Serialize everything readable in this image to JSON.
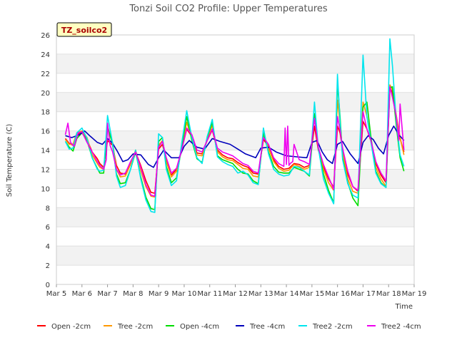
{
  "chart_data": {
    "type": "line",
    "title": "Tonzi Soil CO2 Profile: Upper Temperatures",
    "xlabel": "Time",
    "ylabel": "Soil Temperature (C)",
    "site_label": "TZ_soilco2",
    "xlim": [
      5,
      19
    ],
    "ylim": [
      0,
      26
    ],
    "x_ticks": [
      5,
      6,
      7,
      8,
      9,
      10,
      11,
      12,
      13,
      14,
      15,
      16,
      17,
      18,
      19
    ],
    "x_tick_labels": [
      "Mar 5",
      "Mar 6",
      "Mar 7",
      "Mar 8",
      "Mar 9",
      "Mar 10",
      "Mar 11",
      "Mar 12",
      "Mar 13",
      "Mar 14",
      "Mar 15",
      "Mar 16",
      "Mar 17",
      "Mar 18",
      "Mar 19"
    ],
    "y_ticks": [
      0,
      2,
      4,
      6,
      8,
      10,
      12,
      14,
      16,
      18,
      20,
      22,
      24,
      26
    ],
    "grid": true,
    "legend_position": "bottom",
    "series": [
      {
        "name": "Open -2cm",
        "color": "#ff0000",
        "x": [
          5.35,
          5.5,
          5.65,
          5.8,
          6.0,
          6.2,
          6.4,
          6.6,
          6.7,
          6.85,
          7.0,
          7.2,
          7.35,
          7.5,
          7.7,
          7.9,
          8.1,
          8.3,
          8.5,
          8.7,
          8.85,
          9.0,
          9.15,
          9.3,
          9.5,
          9.7,
          9.9,
          10.1,
          10.3,
          10.5,
          10.7,
          10.9,
          11.1,
          11.3,
          11.5,
          11.7,
          11.9,
          12.1,
          12.3,
          12.5,
          12.7,
          12.9,
          13.1,
          13.3,
          13.5,
          13.7,
          13.9,
          14.1,
          14.3,
          14.5,
          14.7,
          14.9,
          15.1,
          15.25,
          15.45,
          15.65,
          15.85,
          16.0,
          16.1,
          16.2,
          16.4,
          16.6,
          16.8,
          17.0,
          17.15,
          17.3,
          17.5,
          17.7,
          17.9,
          18.05,
          18.15,
          18.3,
          18.45,
          18.6
        ],
        "y": [
          15.2,
          14.7,
          14.5,
          15.6,
          15.9,
          15.1,
          13.8,
          13.1,
          12.6,
          12.2,
          15.0,
          14.5,
          12.4,
          11.6,
          11.5,
          12.7,
          13.8,
          12.4,
          10.8,
          9.6,
          9.5,
          14.1,
          14.6,
          13.0,
          11.4,
          12.0,
          14.0,
          16.2,
          15.4,
          13.7,
          13.6,
          15.0,
          16.1,
          14.0,
          13.5,
          13.2,
          13.1,
          12.7,
          12.4,
          12.2,
          11.6,
          11.5,
          15.1,
          14.4,
          13.0,
          12.3,
          12.0,
          12.1,
          12.6,
          12.5,
          12.2,
          12.4,
          16.5,
          14.0,
          12.3,
          11.0,
          10.1,
          16.5,
          15.8,
          14.0,
          11.5,
          10.2,
          9.7,
          17.0,
          16.2,
          15.0,
          12.6,
          11.4,
          10.6,
          20.5,
          20.0,
          17.5,
          15.2,
          13.8
        ]
      },
      {
        "name": "Tree -2cm",
        "color": "#ff9900",
        "x": [
          5.35,
          5.5,
          5.65,
          5.8,
          6.0,
          6.2,
          6.4,
          6.6,
          6.7,
          6.85,
          7.0,
          7.2,
          7.35,
          7.5,
          7.7,
          7.9,
          8.1,
          8.3,
          8.5,
          8.7,
          8.85,
          9.0,
          9.15,
          9.3,
          9.5,
          9.7,
          9.9,
          10.1,
          10.3,
          10.5,
          10.7,
          10.9,
          11.1,
          11.3,
          11.5,
          11.7,
          11.9,
          12.1,
          12.3,
          12.5,
          12.7,
          12.9,
          13.1,
          13.3,
          13.5,
          13.7,
          13.9,
          14.1,
          14.3,
          14.5,
          14.7,
          14.9,
          15.1,
          15.25,
          15.45,
          15.65,
          15.85,
          16.0,
          16.1,
          16.2,
          16.4,
          16.6,
          16.8,
          17.0,
          17.15,
          17.3,
          17.5,
          17.7,
          17.9,
          18.05,
          18.15,
          18.3,
          18.45,
          18.6
        ],
        "y": [
          15.1,
          14.6,
          14.6,
          15.8,
          16.0,
          15.3,
          13.5,
          12.6,
          12.2,
          12.0,
          16.2,
          14.8,
          12.0,
          11.2,
          11.3,
          12.5,
          14.0,
          11.9,
          10.2,
          9.2,
          9.1,
          14.5,
          15.0,
          12.8,
          11.2,
          11.8,
          14.2,
          16.9,
          15.2,
          13.5,
          13.4,
          15.1,
          16.6,
          13.8,
          13.3,
          13.0,
          12.9,
          12.5,
          12.1,
          12.0,
          11.3,
          11.2,
          15.6,
          14.2,
          12.8,
          12.1,
          11.8,
          11.9,
          12.5,
          12.3,
          12.0,
          12.2,
          17.5,
          14.2,
          12.0,
          10.6,
          9.8,
          19.2,
          16.8,
          13.8,
          11.0,
          9.7,
          9.5,
          19.0,
          17.5,
          15.2,
          12.2,
          11.0,
          10.2,
          20.8,
          20.3,
          17.6,
          15.3,
          13.5
        ]
      },
      {
        "name": "Open -4cm",
        "color": "#00dd00",
        "x": [
          5.35,
          5.5,
          5.65,
          5.8,
          6.0,
          6.2,
          6.4,
          6.6,
          6.7,
          6.85,
          7.0,
          7.2,
          7.35,
          7.5,
          7.7,
          7.9,
          8.1,
          8.3,
          8.5,
          8.7,
          8.85,
          9.0,
          9.15,
          9.3,
          9.5,
          9.7,
          9.9,
          10.1,
          10.3,
          10.5,
          10.7,
          10.9,
          11.1,
          11.3,
          11.5,
          11.7,
          11.9,
          12.1,
          12.3,
          12.5,
          12.7,
          12.9,
          13.1,
          13.3,
          13.5,
          13.7,
          13.9,
          14.1,
          14.3,
          14.5,
          14.7,
          14.9,
          15.1,
          15.25,
          15.45,
          15.65,
          15.85,
          16.0,
          16.1,
          16.2,
          16.4,
          16.6,
          16.8,
          17.0,
          17.15,
          17.3,
          17.5,
          17.7,
          17.9,
          18.05,
          18.15,
          18.3,
          18.45,
          18.6
        ],
        "y": [
          14.9,
          14.3,
          13.9,
          15.2,
          15.8,
          15.0,
          13.2,
          12.1,
          11.6,
          11.6,
          16.5,
          14.6,
          11.5,
          10.5,
          10.6,
          12.0,
          13.8,
          11.2,
          9.1,
          7.9,
          7.8,
          14.9,
          15.3,
          12.3,
          10.6,
          11.1,
          14.3,
          17.5,
          15.0,
          13.1,
          12.7,
          15.3,
          16.9,
          13.4,
          13.0,
          12.8,
          12.6,
          12.0,
          11.6,
          11.5,
          10.8,
          10.5,
          15.8,
          13.8,
          12.3,
          11.7,
          11.6,
          11.6,
          12.2,
          12.0,
          11.8,
          11.3,
          17.8,
          14.2,
          11.5,
          9.8,
          8.5,
          21.0,
          17.5,
          13.2,
          10.6,
          9.0,
          8.2,
          18.5,
          19.0,
          15.5,
          11.8,
          10.6,
          10.1,
          20.5,
          20.6,
          16.5,
          13.2,
          11.8
        ]
      },
      {
        "name": "Tree -4cm",
        "color": "#0000bb",
        "x": [
          5.35,
          5.6,
          5.9,
          6.1,
          6.3,
          6.6,
          6.8,
          7.0,
          7.2,
          7.4,
          7.6,
          7.8,
          8.0,
          8.3,
          8.6,
          8.8,
          9.0,
          9.2,
          9.5,
          9.8,
          10.0,
          10.2,
          10.5,
          10.8,
          11.1,
          11.4,
          11.8,
          12.1,
          12.4,
          12.8,
          13.0,
          13.3,
          13.6,
          14.0,
          14.4,
          14.8,
          15.0,
          15.2,
          15.4,
          15.6,
          15.8,
          16.0,
          16.2,
          16.5,
          16.8,
          17.0,
          17.2,
          17.4,
          17.6,
          17.8,
          18.0,
          18.2,
          18.4,
          18.6
        ],
        "y": [
          15.5,
          15.3,
          15.6,
          16.0,
          15.5,
          14.8,
          14.6,
          15.2,
          14.7,
          13.8,
          12.8,
          13.0,
          13.6,
          13.5,
          12.5,
          12.2,
          13.2,
          14.0,
          13.2,
          13.2,
          14.4,
          15.0,
          14.3,
          14.1,
          15.2,
          14.9,
          14.6,
          14.1,
          13.6,
          13.2,
          14.2,
          14.3,
          13.8,
          13.4,
          13.3,
          13.2,
          14.8,
          15.0,
          13.8,
          13.0,
          12.6,
          14.6,
          14.9,
          13.6,
          12.6,
          14.8,
          15.5,
          15.1,
          14.2,
          13.6,
          15.5,
          16.5,
          15.6,
          15.0
        ]
      },
      {
        "name": "Tree2 -2cm",
        "color": "#00e5ee",
        "x": [
          5.35,
          5.5,
          5.65,
          5.8,
          6.0,
          6.2,
          6.4,
          6.6,
          6.7,
          6.85,
          7.0,
          7.2,
          7.35,
          7.5,
          7.7,
          7.9,
          8.1,
          8.3,
          8.5,
          8.7,
          8.85,
          9.0,
          9.15,
          9.3,
          9.5,
          9.7,
          9.9,
          10.1,
          10.3,
          10.5,
          10.7,
          10.9,
          11.1,
          11.3,
          11.5,
          11.7,
          11.9,
          12.1,
          12.3,
          12.5,
          12.7,
          12.9,
          13.1,
          13.3,
          13.5,
          13.7,
          13.9,
          14.1,
          14.3,
          14.5,
          14.7,
          14.9,
          15.1,
          15.25,
          15.45,
          15.65,
          15.85,
          16.0,
          16.1,
          16.2,
          16.4,
          16.6,
          16.8,
          17.0,
          17.15,
          17.3,
          17.5,
          17.7,
          17.9,
          18.05,
          18.15,
          18.3,
          18.45,
          18.6
        ],
        "y": [
          14.9,
          14.1,
          14.2,
          15.8,
          16.3,
          15.2,
          13.2,
          12.0,
          11.8,
          11.9,
          17.6,
          14.7,
          11.3,
          10.1,
          10.3,
          12.0,
          14.0,
          11.0,
          8.8,
          7.6,
          7.5,
          15.7,
          15.3,
          12.0,
          10.3,
          10.8,
          14.7,
          18.1,
          15.3,
          13.2,
          12.6,
          15.4,
          17.2,
          13.3,
          12.8,
          12.5,
          12.3,
          11.6,
          11.8,
          11.4,
          10.6,
          10.4,
          16.3,
          13.6,
          12.0,
          11.5,
          11.3,
          11.4,
          12.3,
          12.2,
          11.8,
          11.4,
          19.0,
          14.2,
          11.0,
          9.5,
          8.4,
          21.9,
          17.0,
          13.0,
          10.5,
          9.3,
          9.0,
          23.9,
          17.5,
          15.0,
          11.6,
          10.5,
          10.1,
          25.6,
          22.8,
          17.0,
          13.5,
          12.3
        ]
      },
      {
        "name": "Tree2 -4cm",
        "color": "#ee00ee",
        "x": [
          5.35,
          5.45,
          5.55,
          5.7,
          5.85,
          6.0,
          6.2,
          6.4,
          6.6,
          6.7,
          6.85,
          6.95,
          7.0,
          7.1,
          7.2,
          7.35,
          7.5,
          7.7,
          7.9,
          8.1,
          8.3,
          8.5,
          8.7,
          8.85,
          9.0,
          9.15,
          9.3,
          9.5,
          9.7,
          9.9,
          10.1,
          10.3,
          10.5,
          10.7,
          10.9,
          11.1,
          11.3,
          11.5,
          11.7,
          11.9,
          12.1,
          12.3,
          12.5,
          12.7,
          12.9,
          13.1,
          13.3,
          13.5,
          13.7,
          13.9,
          13.95,
          14.0,
          14.05,
          14.1,
          14.15,
          14.25,
          14.3,
          14.5,
          14.7,
          14.9,
          15.1,
          15.25,
          15.45,
          15.65,
          15.85,
          16.0,
          16.1,
          16.2,
          16.4,
          16.6,
          16.8,
          17.0,
          17.15,
          17.3,
          17.5,
          17.7,
          17.9,
          18.05,
          18.15,
          18.3,
          18.4,
          18.45,
          18.6
        ],
        "y": [
          15.6,
          16.8,
          14.8,
          14.4,
          15.8,
          15.9,
          14.8,
          13.8,
          12.8,
          12.4,
          12.0,
          13.0,
          16.8,
          14.5,
          13.8,
          12.0,
          11.4,
          11.6,
          12.8,
          13.8,
          12.2,
          10.4,
          9.3,
          9.2,
          14.3,
          14.9,
          13.2,
          11.6,
          12.1,
          14.0,
          16.3,
          15.6,
          14.0,
          13.8,
          15.0,
          16.2,
          14.2,
          13.8,
          13.6,
          13.4,
          13.0,
          12.6,
          12.4,
          11.8,
          11.6,
          15.3,
          14.6,
          13.2,
          12.6,
          12.3,
          16.3,
          12.5,
          16.5,
          12.4,
          12.6,
          12.8,
          14.6,
          13.0,
          12.8,
          12.5,
          17.3,
          14.3,
          12.5,
          11.2,
          9.9,
          17.5,
          16.1,
          14.2,
          11.8,
          10.2,
          9.8,
          18.0,
          16.2,
          15.1,
          12.8,
          11.6,
          10.8,
          20.6,
          19.5,
          17.5,
          15.0,
          18.8,
          14.0
        ]
      }
    ]
  }
}
